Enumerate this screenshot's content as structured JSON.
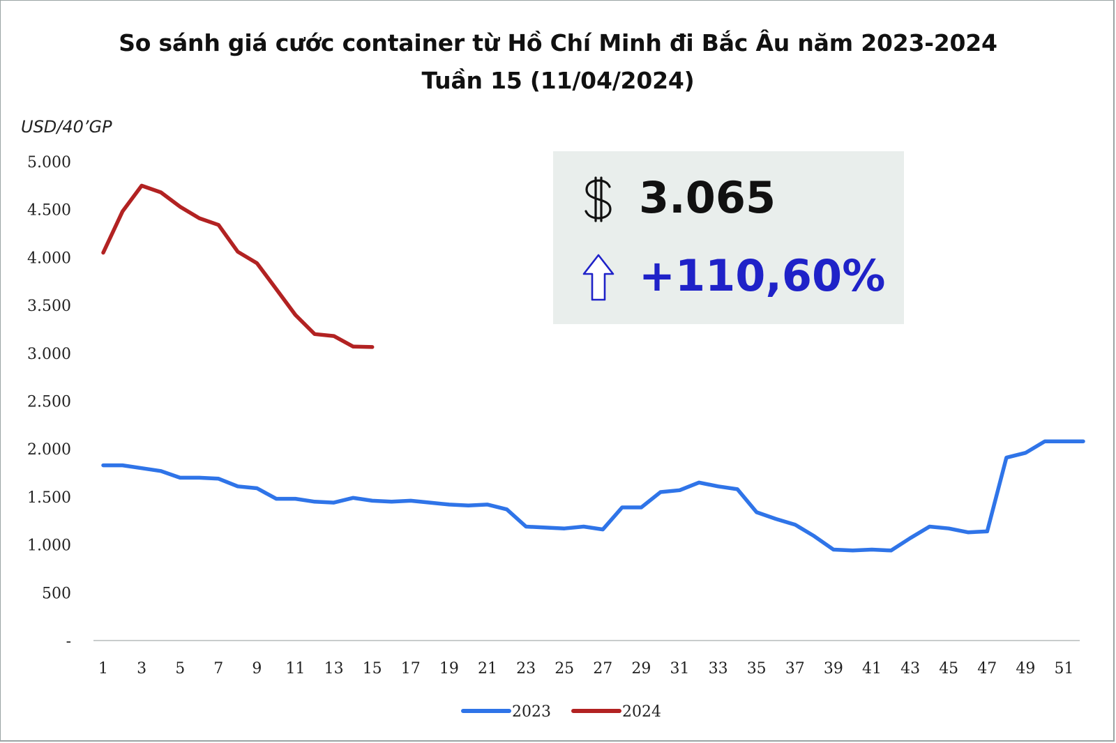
{
  "title": "So sánh giá cước container từ Hồ Chí Minh đi Bắc Âu năm 2023-2024",
  "subtitle": "Tuần 15 (11/04/2024)",
  "unit_label": "USD/40’GP",
  "infobox": {
    "price": "3.065",
    "change": "+110,60%",
    "icons": [
      "dollar-icon",
      "up-arrow-icon"
    ],
    "change_color": "#1f22c8"
  },
  "chart_data": {
    "type": "line",
    "title": "So sánh giá cước container từ Hồ Chí Minh đi Bắc Âu năm 2023-2024",
    "subtitle": "Tuần 15 (11/04/2024)",
    "ylabel": "USD/40’GP",
    "xlabel": "",
    "ylim": [
      0,
      5000
    ],
    "xlim": [
      1,
      52
    ],
    "y_ticks": [
      "-",
      "500",
      "1.000",
      "1.500",
      "2.000",
      "2.500",
      "3.000",
      "3.500",
      "4.000",
      "4.500",
      "5.000"
    ],
    "y_tick_values": [
      0,
      500,
      1000,
      1500,
      2000,
      2500,
      3000,
      3500,
      4000,
      4500,
      5000
    ],
    "x_ticks": [
      "1",
      "3",
      "5",
      "7",
      "9",
      "11",
      "13",
      "15",
      "17",
      "19",
      "21",
      "23",
      "25",
      "27",
      "29",
      "31",
      "33",
      "35",
      "37",
      "39",
      "41",
      "43",
      "45",
      "47",
      "49",
      "51"
    ],
    "x_tick_values": [
      1,
      3,
      5,
      7,
      9,
      11,
      13,
      15,
      17,
      19,
      21,
      23,
      25,
      27,
      29,
      31,
      33,
      35,
      37,
      39,
      41,
      43,
      45,
      47,
      49,
      51
    ],
    "grid": false,
    "legend_position": "bottom",
    "series": [
      {
        "name": "2023",
        "color": "#2f74e8",
        "x": [
          1,
          2,
          3,
          4,
          5,
          6,
          7,
          8,
          9,
          10,
          11,
          12,
          13,
          14,
          15,
          16,
          17,
          18,
          19,
          20,
          21,
          22,
          23,
          24,
          25,
          26,
          27,
          28,
          29,
          30,
          31,
          32,
          33,
          34,
          35,
          36,
          37,
          38,
          39,
          40,
          41,
          42,
          43,
          44,
          45,
          46,
          47,
          48,
          49,
          50,
          51,
          52
        ],
        "values": [
          1830,
          1830,
          1800,
          1770,
          1700,
          1700,
          1690,
          1610,
          1590,
          1480,
          1480,
          1450,
          1440,
          1490,
          1460,
          1450,
          1460,
          1440,
          1420,
          1410,
          1420,
          1370,
          1190,
          1180,
          1170,
          1190,
          1160,
          1390,
          1390,
          1550,
          1570,
          1650,
          1610,
          1580,
          1340,
          1270,
          1210,
          1090,
          950,
          940,
          950,
          940,
          1070,
          1190,
          1170,
          1130,
          1140,
          1910,
          1960,
          2080,
          2080,
          2080
        ]
      },
      {
        "name": "2024",
        "color": "#b22222",
        "x": [
          1,
          2,
          3,
          4,
          5,
          6,
          7,
          8,
          9,
          10,
          11,
          12,
          13,
          14,
          15
        ],
        "values": [
          4050,
          4480,
          4750,
          4680,
          4530,
          4410,
          4340,
          4060,
          3940,
          3670,
          3400,
          3200,
          3180,
          3070,
          3065
        ]
      }
    ]
  }
}
